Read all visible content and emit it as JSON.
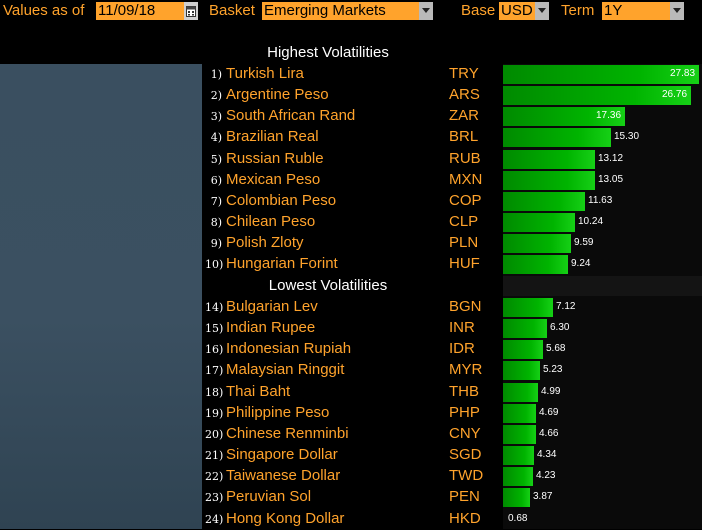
{
  "toolbar": {
    "values_as_of_label": "Values as of",
    "date_value": "11/09/18",
    "basket_label": "Basket",
    "basket_value": "Emerging Markets",
    "base_label": "Base",
    "base_value": "USD",
    "term_label": "Term",
    "term_value": "1Y",
    "icons": {
      "calendar": "calendar-icon",
      "dropdown": "chevron-down-icon"
    }
  },
  "highest": {
    "title": "Highest Volatilities",
    "rows": [
      {
        "rank": "1)",
        "name": "Turkish Lira",
        "code": "TRY",
        "value": 27.83,
        "label": "27.83"
      },
      {
        "rank": "2)",
        "name": "Argentine Peso",
        "code": "ARS",
        "value": 26.76,
        "label": "26.76"
      },
      {
        "rank": "3)",
        "name": "South African Rand",
        "code": "ZAR",
        "value": 17.36,
        "label": "17.36"
      },
      {
        "rank": "4)",
        "name": "Brazilian Real",
        "code": "BRL",
        "value": 15.3,
        "label": "15.30"
      },
      {
        "rank": "5)",
        "name": "Russian Ruble",
        "code": "RUB",
        "value": 13.12,
        "label": "13.12"
      },
      {
        "rank": "6)",
        "name": "Mexican Peso",
        "code": "MXN",
        "value": 13.05,
        "label": "13.05"
      },
      {
        "rank": "7)",
        "name": "Colombian Peso",
        "code": "COP",
        "value": 11.63,
        "label": "11.63"
      },
      {
        "rank": "8)",
        "name": "Chilean Peso",
        "code": "CLP",
        "value": 10.24,
        "label": "10.24"
      },
      {
        "rank": "9)",
        "name": "Polish Zloty",
        "code": "PLN",
        "value": 9.59,
        "label": "9.59"
      },
      {
        "rank": "10)",
        "name": "Hungarian Forint",
        "code": "HUF",
        "value": 9.24,
        "label": "9.24"
      }
    ]
  },
  "lowest": {
    "title": "Lowest Volatilities",
    "rows": [
      {
        "rank": "14)",
        "name": "Bulgarian Lev",
        "code": "BGN",
        "value": 7.12,
        "label": "7.12"
      },
      {
        "rank": "15)",
        "name": "Indian Rupee",
        "code": "INR",
        "value": 6.3,
        "label": "6.30"
      },
      {
        "rank": "16)",
        "name": "Indonesian Rupiah",
        "code": "IDR",
        "value": 5.68,
        "label": "5.68"
      },
      {
        "rank": "17)",
        "name": "Malaysian Ringgit",
        "code": "MYR",
        "value": 5.23,
        "label": "5.23"
      },
      {
        "rank": "18)",
        "name": "Thai Baht",
        "code": "THB",
        "value": 4.99,
        "label": "4.99"
      },
      {
        "rank": "19)",
        "name": "Philippine Peso",
        "code": "PHP",
        "value": 4.69,
        "label": "4.69"
      },
      {
        "rank": "20)",
        "name": "Chinese Renminbi",
        "code": "CNY",
        "value": 4.66,
        "label": "4.66"
      },
      {
        "rank": "21)",
        "name": "Singapore Dollar",
        "code": "SGD",
        "value": 4.34,
        "label": "4.34"
      },
      {
        "rank": "22)",
        "name": "Taiwanese Dollar",
        "code": "TWD",
        "value": 4.23,
        "label": "4.23"
      },
      {
        "rank": "23)",
        "name": "Peruvian Sol",
        "code": "PEN",
        "value": 3.87,
        "label": "3.87"
      },
      {
        "rank": "24)",
        "name": "Hong Kong Dollar",
        "code": "HKD",
        "value": 0.68,
        "label": "0.68"
      }
    ]
  },
  "colors": {
    "accent_orange": "#ffa32c",
    "bar_green": "#00b400",
    "background": "#000000",
    "left_panel": "#3a4f60"
  }
}
